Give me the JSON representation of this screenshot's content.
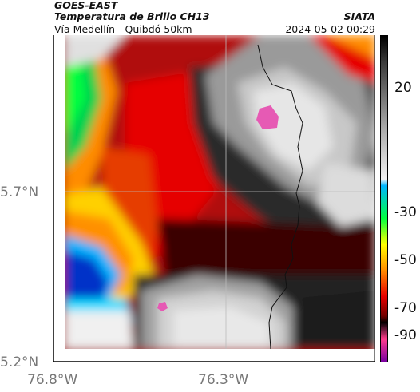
{
  "header": {
    "satellite": "GOES-EAST",
    "product": "Temperatura de Brillo CH13",
    "region": "Vía Medellín - Quibdó 50km",
    "agency": "SIATA",
    "timestamp": "2024-05-02 00:29"
  },
  "map": {
    "lat_ticks": [
      "5.7°N",
      "5.2°N"
    ],
    "lon_ticks": [
      "76.8°W",
      "76.3°W"
    ],
    "center_marker": {
      "lat": 5.7,
      "lon": -76.3
    }
  },
  "colorbar": {
    "ticks": [
      "20",
      "-30",
      "-50",
      "-70",
      "-90"
    ],
    "colors": [
      "#f2f2f2",
      "#a8a8a8",
      "#3a3a3a",
      "#000000",
      "#ff3c8c",
      "#7a00a0",
      "#00b4ff",
      "#00ff40",
      "#ffff00",
      "#ff8c00",
      "#e60000",
      "#700000"
    ]
  }
}
